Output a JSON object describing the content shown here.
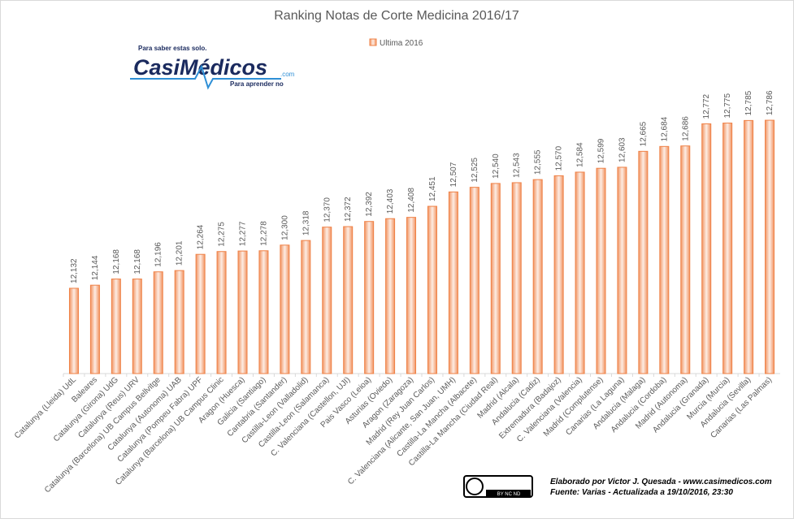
{
  "chart_data": {
    "type": "bar",
    "title": "Ranking Notas de Corte Medicina 2016/17",
    "categories": [
      "Catalunya (Lleida) UdL",
      "Baleares",
      "Catalunya (Girona) UdG",
      "Catalunya (Reus) URV",
      "Catalunya (Barcelona) UB Campus Bellvitge",
      "Catalunya (Autonoma) UAB",
      "Catalunya (Pompeu Fabra) UPF",
      "Catalunya (Barcelona) UB Campus Clinic",
      "Aragon (Huesca)",
      "Galicia (Santiago)",
      "Cantabria (Santander)",
      "Castilla-Leon (Valladolid)",
      "Castilla-Leon (Salamanca)",
      "C. Valenciana (Castellon, UJI)",
      "Pais Vasco (Leioa)",
      "Asturias (Oviedo)",
      "Aragon (Zaragoza)",
      "Madrid (Rey Juan Carlos)",
      "C. Valenciana (Alicante, San Juan, UMH)",
      "Castilla-La Mancha (Albacete)",
      "Castilla-La Mancha (Ciudad Real)",
      "Madrid (Alcala)",
      "Andalucia (Cadiz)",
      "Extremadura (Badajoz)",
      "C. Valenciana (Valencia)",
      "Madrid (Complutense)",
      "Canarias (La Laguna)",
      "Andalucia (Malaga)",
      "Andalucia (Cordoba)",
      "Madrid (Autonoma)",
      "Andalucia (Granada)",
      "Murcia (Murcia)",
      "Andalucia (Sevilla)",
      "Canarias (Las Palmas)"
    ],
    "series": [
      {
        "name": "Ultima 2016",
        "color": "#ef8146",
        "values": [
          12.132,
          12.144,
          12.168,
          12.168,
          12.196,
          12.201,
          12.264,
          12.275,
          12.277,
          12.278,
          12.3,
          12.318,
          12.37,
          12.372,
          12.392,
          12.403,
          12.408,
          12.451,
          12.507,
          12.525,
          12.54,
          12.543,
          12.555,
          12.57,
          12.584,
          12.599,
          12.603,
          12.665,
          12.684,
          12.686,
          12.772,
          12.775,
          12.785,
          12.786
        ],
        "value_labels": [
          "12,132",
          "12,144",
          "12,168",
          "12,168",
          "12,196",
          "12,201",
          "12,264",
          "12,275",
          "12,277",
          "12,278",
          "12,300",
          "12,318",
          "12,370",
          "12,372",
          "12,392",
          "12,403",
          "12,408",
          "12,451",
          "12,507",
          "12,525",
          "12,540",
          "12,543",
          "12,555",
          "12,570",
          "12,584",
          "12,599",
          "12,603",
          "12,665",
          "12,684",
          "12,686",
          "12,772",
          "12,775",
          "12,785",
          "12,786"
        ]
      }
    ],
    "ylim": [
      11.8,
      12.9
    ],
    "legend": "top"
  },
  "logo": {
    "tagline_top": "Para saber estas solo.",
    "brand": "CasiMédicos",
    "domain": ".com",
    "tagline_bottom": "Para aprender no"
  },
  "license": {
    "badge": "BY NC ND"
  },
  "footer": {
    "credit": "Elaborado por Victor J. Quesada - www.casimedicos.com",
    "source": "Fuente:  Varias - Actualizada a 19/10/2016, 23:30"
  }
}
